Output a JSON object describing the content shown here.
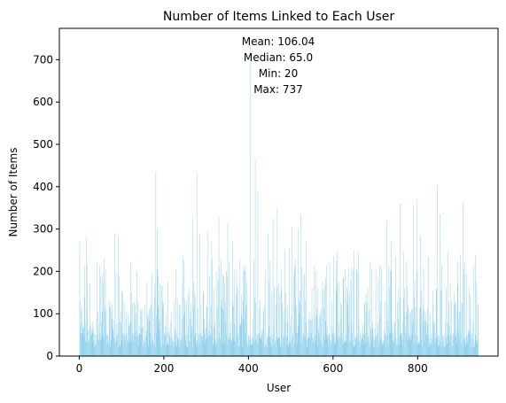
{
  "chart_data": {
    "type": "bar",
    "title": "Number of Items Linked to Each User",
    "xlabel": "User",
    "ylabel": "Number of Items",
    "xlim": [
      -47,
      990
    ],
    "ylim": [
      0,
      774
    ],
    "xticks": [
      0,
      200,
      400,
      600,
      800
    ],
    "yticks": [
      0,
      100,
      200,
      300,
      400,
      500,
      600,
      700
    ],
    "bar_color": "#87ceeb",
    "n_users": 943,
    "annotations": [
      "Mean: 106.04",
      "Median: 65.0",
      "Min: 20",
      "Max: 737"
    ],
    "x": [
      1,
      5,
      13,
      17,
      18,
      20,
      42,
      48,
      55,
      59,
      62,
      64,
      84,
      92,
      94,
      103,
      117,
      145,
      151,
      160,
      166,
      178,
      181,
      184,
      199,
      210,
      232,
      245,
      253,
      268,
      272,
      278,
      285,
      294,
      303,
      313,
      328,
      330,
      343,
      351,
      363,
      373,
      380,
      387,
      393,
      396,
      405,
      413,
      416,
      422,
      440,
      447,
      450,
      458,
      468,
      472,
      486,
      497,
      503,
      509,
      518,
      524,
      532,
      536,
      550,
      559,
      584,
      592,
      601,
      610,
      625,
      633,
      644,
      650,
      655,
      660,
      682,
      707,
      712,
      715,
      727,
      738,
      748,
      758,
      766,
      774,
      790,
      799,
      807,
      826,
      836,
      846,
      853,
      872,
      886,
      894,
      901,
      907,
      916,
      924,
      936,
      938
    ],
    "values": [
      272,
      55,
      140,
      280,
      110,
      60,
      220,
      215,
      195,
      230,
      205,
      110,
      290,
      280,
      190,
      150,
      70,
      110,
      70,
      175,
      110,
      140,
      435,
      300,
      125,
      175,
      135,
      240,
      130,
      325,
      150,
      435,
      290,
      150,
      295,
      270,
      180,
      330,
      170,
      315,
      270,
      165,
      230,
      130,
      210,
      175,
      737,
      225,
      465,
      390,
      205,
      290,
      225,
      325,
      350,
      170,
      250,
      255,
      305,
      215,
      300,
      335,
      195,
      270,
      160,
      200,
      215,
      220,
      235,
      245,
      185,
      165,
      210,
      250,
      200,
      245,
      160,
      185,
      130,
      210,
      320,
      270,
      235,
      360,
      250,
      225,
      355,
      370,
      285,
      235,
      155,
      405,
      335,
      245,
      150,
      225,
      240,
      360,
      195,
      145,
      240,
      175
    ]
  }
}
